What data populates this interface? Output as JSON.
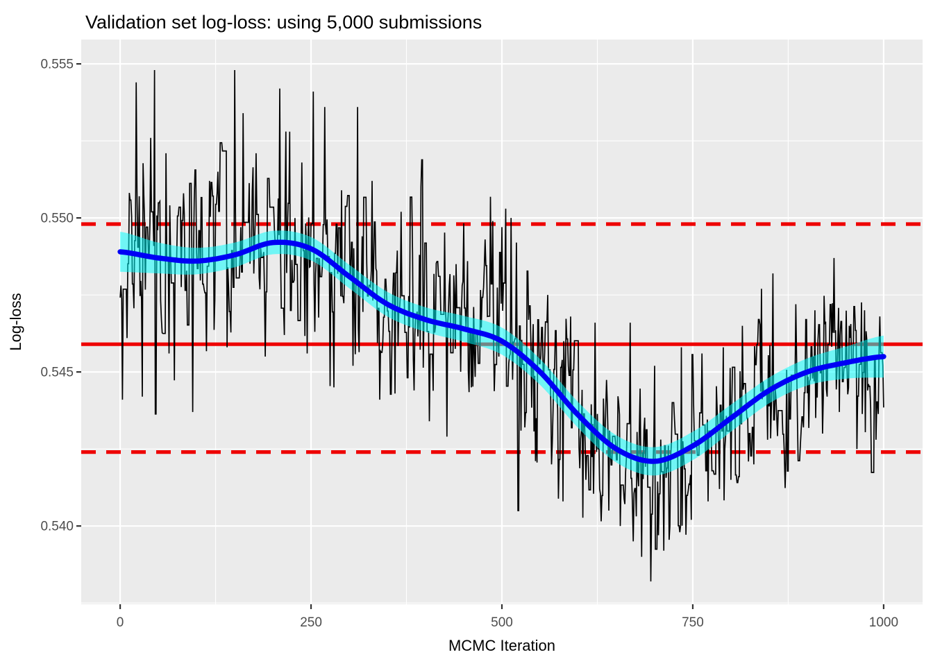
{
  "chart_data": {
    "type": "line",
    "title": "Validation set log-loss: using 5,000 submissions",
    "xlabel": "MCMC Iteration",
    "ylabel": "Log-loss",
    "xlim": [
      -51,
      1051
    ],
    "ylim": [
      0.53746,
      0.55579
    ],
    "grid": true,
    "legend_position": "none",
    "panel_bg": "#EBEBEB",
    "grid_color": "#FFFFFF",
    "axis_text_color": "#4D4D4D",
    "tick_mark_color": "#333333",
    "x_ticks": [
      {
        "value": 0,
        "label": "0"
      },
      {
        "value": 250,
        "label": "250"
      },
      {
        "value": 500,
        "label": "500"
      },
      {
        "value": 750,
        "label": "750"
      },
      {
        "value": 1000,
        "label": "1000"
      }
    ],
    "y_ticks": [
      {
        "value": 0.54,
        "label": "0.540"
      },
      {
        "value": 0.545,
        "label": "0.545"
      },
      {
        "value": 0.55,
        "label": "0.550"
      },
      {
        "value": 0.555,
        "label": "0.555"
      }
    ],
    "x_minor": [
      125,
      375,
      625,
      875
    ],
    "y_minor": [
      0.5375,
      0.5425,
      0.5475,
      0.5525
    ],
    "reference_lines": [
      {
        "y": 0.5459,
        "style": "solid",
        "color": "#EE0000"
      },
      {
        "y": 0.5498,
        "style": "dashed",
        "color": "#EE0000"
      },
      {
        "y": 0.5424,
        "style": "dashed",
        "color": "#EE0000"
      }
    ],
    "series": [
      {
        "name": "log-loss trace",
        "type": "noisy-line",
        "color": "#000000",
        "x_range": [
          0,
          1000
        ],
        "noise": {
          "sigma": 0.00135,
          "phi": 0.25,
          "hold_prob": 0.4,
          "heavy_tail_prob": 0.05,
          "heavy_tail_scale": 2.1,
          "seed": 11,
          "clamp": [
            0.5381,
            0.5549
          ]
        },
        "spikes": [
          [
            3,
            0.5441
          ],
          [
            9,
            0.5461
          ],
          [
            21,
            0.5544
          ],
          [
            29,
            0.5442
          ],
          [
            40,
            0.5526
          ],
          [
            45,
            0.5548
          ],
          [
            60,
            0.5521
          ],
          [
            64,
            0.5456
          ],
          [
            83,
            0.5508
          ],
          [
            95,
            0.5437
          ],
          [
            117,
            0.5512
          ],
          [
            128,
            0.5515
          ],
          [
            140,
            0.5458
          ],
          [
            150,
            0.5548
          ],
          [
            161,
            0.5534
          ],
          [
            178,
            0.5521
          ],
          [
            190,
            0.5455
          ],
          [
            209,
            0.5542
          ],
          [
            215,
            0.5462
          ],
          [
            222,
            0.5528
          ],
          [
            238,
            0.5518
          ],
          [
            245,
            0.5456
          ],
          [
            253,
            0.5541
          ],
          [
            268,
            0.5536
          ],
          [
            280,
            0.5445
          ],
          [
            290,
            0.5509
          ],
          [
            305,
            0.5452
          ],
          [
            311,
            0.5536
          ],
          [
            330,
            0.5512
          ],
          [
            340,
            0.5441
          ],
          [
            360,
            0.5443
          ],
          [
            368,
            0.5502
          ],
          [
            385,
            0.5444
          ],
          [
            392,
            0.5488
          ],
          [
            405,
            0.5434
          ],
          [
            428,
            0.5429
          ],
          [
            440,
            0.5485
          ],
          [
            460,
            0.5445
          ],
          [
            478,
            0.5493
          ],
          [
            488,
            0.5499
          ],
          [
            496,
            0.5455
          ],
          [
            500,
            0.5497
          ],
          [
            505,
            0.5503
          ],
          [
            512,
            0.55
          ],
          [
            519,
            0.5492
          ],
          [
            530,
            0.5432
          ],
          [
            545,
            0.5435
          ],
          [
            560,
            0.5475
          ],
          [
            565,
            0.542
          ],
          [
            580,
            0.5408
          ],
          [
            590,
            0.5468
          ],
          [
            610,
            0.5415
          ],
          [
            622,
            0.5466
          ],
          [
            628,
            0.5412
          ],
          [
            640,
            0.5405
          ],
          [
            655,
            0.54
          ],
          [
            668,
            0.5466
          ],
          [
            672,
            0.5395
          ],
          [
            683,
            0.539
          ],
          [
            695,
            0.5382
          ],
          [
            700,
            0.5452
          ],
          [
            705,
            0.5397
          ],
          [
            712,
            0.5392
          ],
          [
            720,
            0.54
          ],
          [
            733,
            0.5398
          ],
          [
            735,
            0.5458
          ],
          [
            748,
            0.5402
          ],
          [
            762,
            0.5456
          ],
          [
            770,
            0.5408
          ],
          [
            785,
            0.5412
          ],
          [
            790,
            0.5458
          ],
          [
            800,
            0.5415
          ],
          [
            815,
            0.5465
          ],
          [
            830,
            0.542
          ],
          [
            840,
            0.5477
          ],
          [
            848,
            0.5428
          ],
          [
            855,
            0.5482
          ],
          [
            870,
            0.5423
          ],
          [
            885,
            0.5472
          ],
          [
            895,
            0.5432
          ],
          [
            910,
            0.547
          ],
          [
            920,
            0.543
          ],
          [
            935,
            0.5487
          ],
          [
            942,
            0.5437
          ],
          [
            955,
            0.5465
          ],
          [
            965,
            0.5425
          ],
          [
            975,
            0.547
          ],
          [
            990,
            0.5428
          ],
          [
            995,
            0.5468
          ]
        ]
      },
      {
        "name": "loess smooth",
        "type": "smooth",
        "line_color": "#0000F5",
        "ribbon_color": "#00FFFF",
        "ribbon_alpha": 0.52,
        "points": [
          [
            0,
            0.5489,
            0.00065
          ],
          [
            50,
            0.5487,
            0.0005
          ],
          [
            100,
            0.5486,
            0.00043
          ],
          [
            150,
            0.5488,
            0.0004
          ],
          [
            200,
            0.5492,
            0.00038
          ],
          [
            250,
            0.549,
            0.00038
          ],
          [
            300,
            0.5481,
            0.00038
          ],
          [
            350,
            0.5472,
            0.0004
          ],
          [
            400,
            0.5467,
            0.0004
          ],
          [
            450,
            0.5464,
            0.00042
          ],
          [
            500,
            0.546,
            0.00044
          ],
          [
            550,
            0.545,
            0.00042
          ],
          [
            600,
            0.5436,
            0.00042
          ],
          [
            650,
            0.5425,
            0.00044
          ],
          [
            700,
            0.5421,
            0.00046
          ],
          [
            750,
            0.5426,
            0.00046
          ],
          [
            800,
            0.5435,
            0.00044
          ],
          [
            850,
            0.5444,
            0.00042
          ],
          [
            900,
            0.545,
            0.00044
          ],
          [
            950,
            0.5453,
            0.00052
          ],
          [
            1000,
            0.5455,
            0.00068
          ]
        ]
      }
    ]
  }
}
